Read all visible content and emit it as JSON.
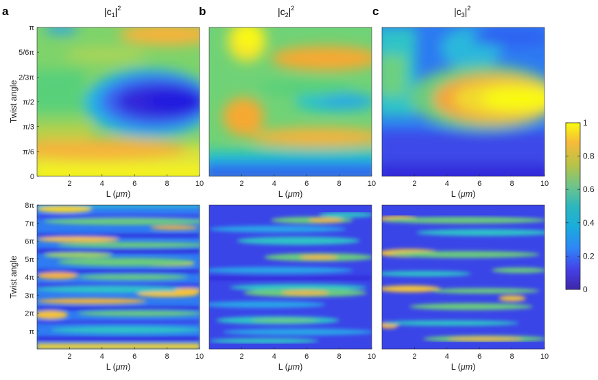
{
  "figure": {
    "panel_letters": [
      "a",
      "b",
      "c"
    ],
    "titles": [
      {
        "base": "|c",
        "sub": "1",
        "close": "|",
        "sup": "2"
      },
      {
        "base": "|c",
        "sub": "2",
        "close": "|",
        "sup": "2"
      },
      {
        "base": "|c",
        "sub": "3",
        "close": "|",
        "sup": "2"
      }
    ],
    "xlabel_prefix": "L (",
    "xlabel_unit": "μm",
    "xlabel_suffix": ")",
    "ylabel": "Twist angle",
    "colormap": "parula",
    "colors": {
      "low": "#3E26A8",
      "mid": "#2EB7BE",
      "high": "#F9FB0E"
    }
  },
  "chart_data": [
    {
      "type": "heatmap",
      "row": "top",
      "panel": "a",
      "series": "|c1|^2",
      "xlim": [
        0,
        10
      ],
      "ylim": [
        0,
        3.1416
      ],
      "xticks": [
        "2",
        "4",
        "6",
        "8",
        "10"
      ],
      "yticks": [
        "0",
        "π/6",
        "π/3",
        "π/2",
        "2/3π",
        "5/6π",
        "π"
      ],
      "colorbar_range": [
        0,
        1
      ],
      "description_of_pattern": "high near 0 and π twist, deep minimum around π/2 for L>3"
    },
    {
      "type": "heatmap",
      "row": "top",
      "panel": "b",
      "series": "|c2|^2",
      "xlim": [
        0,
        10
      ],
      "ylim": [
        0,
        3.1416
      ],
      "xticks": [
        "2",
        "4",
        "6",
        "8",
        "10"
      ],
      "colorbar_range": [
        0,
        1
      ]
    },
    {
      "type": "heatmap",
      "row": "top",
      "panel": "c",
      "series": "|c3|^2",
      "xlim": [
        0,
        10
      ],
      "ylim": [
        0,
        3.1416
      ],
      "xticks": [
        "2",
        "4",
        "6",
        "8",
        "10"
      ],
      "colorbar_range": [
        0,
        1
      ]
    },
    {
      "type": "heatmap",
      "row": "bottom",
      "panel": "a",
      "series": "|c1|^2",
      "xlim": [
        0,
        10
      ],
      "ylim": [
        0,
        25.13
      ],
      "xticks": [
        "2",
        "4",
        "6",
        "8",
        "10"
      ],
      "yticks": [
        "π",
        "2π",
        "3π",
        "4π",
        "5π",
        "6π",
        "7π",
        "8π"
      ],
      "colorbar_range": [
        0,
        1
      ]
    },
    {
      "type": "heatmap",
      "row": "bottom",
      "panel": "b",
      "series": "|c2|^2",
      "xlim": [
        0,
        10
      ],
      "ylim": [
        0,
        25.13
      ],
      "xticks": [
        "2",
        "4",
        "6",
        "8",
        "10"
      ],
      "colorbar_range": [
        0,
        1
      ]
    },
    {
      "type": "heatmap",
      "row": "bottom",
      "panel": "c",
      "series": "|c3|^2",
      "xlim": [
        0,
        10
      ],
      "ylim": [
        0,
        25.13
      ],
      "xticks": [
        "2",
        "4",
        "6",
        "8",
        "10"
      ],
      "colorbar_range": [
        0,
        1
      ]
    }
  ],
  "colorbar": {
    "ticks": [
      "0",
      "0.2",
      "0.4",
      "0.6",
      "0.8",
      "1"
    ],
    "range": [
      0,
      1
    ]
  }
}
